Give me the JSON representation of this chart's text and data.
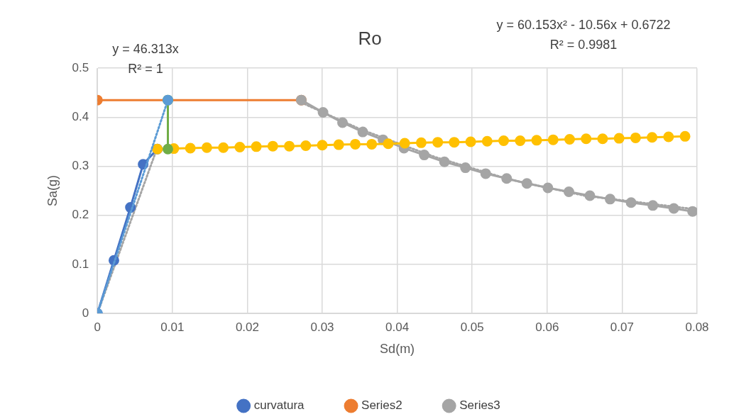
{
  "chart_data": {
    "type": "line",
    "title": "Ro",
    "xlabel": "Sd(m)",
    "ylabel": "Sa(g)",
    "annotations": [
      "y = 46.313x",
      "R² = 1",
      "y = 60.153x² - 10.56x + 0.6722",
      "R² = 0.9981"
    ],
    "xlim": [
      0,
      0.08
    ],
    "xticks": [
      0,
      0.01,
      0.02,
      0.03,
      0.04,
      0.05,
      0.06,
      0.07,
      0.08
    ],
    "ylim": [
      0,
      0.5
    ],
    "yticks": [
      0,
      0.1,
      0.2,
      0.3,
      0.4,
      0.5
    ],
    "grid": true,
    "legend": "bottom",
    "marker": "circle",
    "line_style": "solid",
    "series": [
      {
        "color": "#a5a5a5",
        "marker": "none",
        "line_style": "dotted",
        "x": [
          0,
          0.0078
        ],
        "values": [
          0,
          0.33
        ]
      },
      {
        "color": "#a5a5a5",
        "marker": "none",
        "line_style": "dotted",
        "x": [
          0.0272,
          0.035,
          0.045,
          0.055,
          0.065,
          0.0794
        ],
        "values": [
          0.43,
          0.376,
          0.319,
          0.273,
          0.24,
          0.213
        ]
      },
      {
        "name": "curvatura",
        "color": "#4472c4",
        "x": [
          0,
          0.0022,
          0.0044,
          0.0061,
          0.008
        ],
        "values": [
          0,
          0.108,
          0.216,
          0.304,
          0.335
        ]
      },
      {
        "name": "Series2",
        "color": "#ed7d31",
        "x": [
          0,
          0.0272
        ],
        "values": [
          0.435,
          0.435
        ]
      },
      {
        "name": "Series3",
        "color": "#a5a5a5",
        "x": [
          0.0272,
          0.0301,
          0.0327,
          0.0354,
          0.0381,
          0.0409,
          0.0436,
          0.0463,
          0.0491,
          0.0518,
          0.0546,
          0.0573,
          0.0601,
          0.0629,
          0.0657,
          0.0684,
          0.0712,
          0.0741,
          0.0769,
          0.0794
        ],
        "values": [
          0.435,
          0.41,
          0.389,
          0.37,
          0.354,
          0.337,
          0.323,
          0.309,
          0.297,
          0.285,
          0.275,
          0.265,
          0.256,
          0.248,
          0.24,
          0.233,
          0.226,
          0.22,
          0.214,
          0.208
        ]
      },
      {
        "color": "#ffc000",
        "x": [
          0.008,
          0.0102,
          0.0124,
          0.0146,
          0.0168,
          0.019,
          0.0212,
          0.0234,
          0.0256,
          0.0278,
          0.03,
          0.0322,
          0.0344,
          0.0366,
          0.0388,
          0.041,
          0.0432,
          0.0454,
          0.0476,
          0.0498,
          0.052,
          0.0542,
          0.0564,
          0.0586,
          0.0608,
          0.063,
          0.0652,
          0.0674,
          0.0696,
          0.0718,
          0.074,
          0.0762,
          0.0784
        ],
        "values": [
          0.335,
          0.336,
          0.337,
          0.338,
          0.338,
          0.339,
          0.34,
          0.341,
          0.341,
          0.342,
          0.343,
          0.344,
          0.345,
          0.345,
          0.346,
          0.347,
          0.348,
          0.349,
          0.349,
          0.35,
          0.351,
          0.352,
          0.352,
          0.353,
          0.354,
          0.355,
          0.356,
          0.356,
          0.357,
          0.358,
          0.359,
          0.36,
          0.361
        ]
      },
      {
        "color": "#70ad47",
        "x": [
          0.0094,
          0.0094
        ],
        "values": [
          0.435,
          0.335
        ]
      },
      {
        "color": "#5b9bd5",
        "line_style": "dotted",
        "x": [
          0,
          0.0094
        ],
        "values": [
          0,
          0.435
        ]
      }
    ]
  }
}
